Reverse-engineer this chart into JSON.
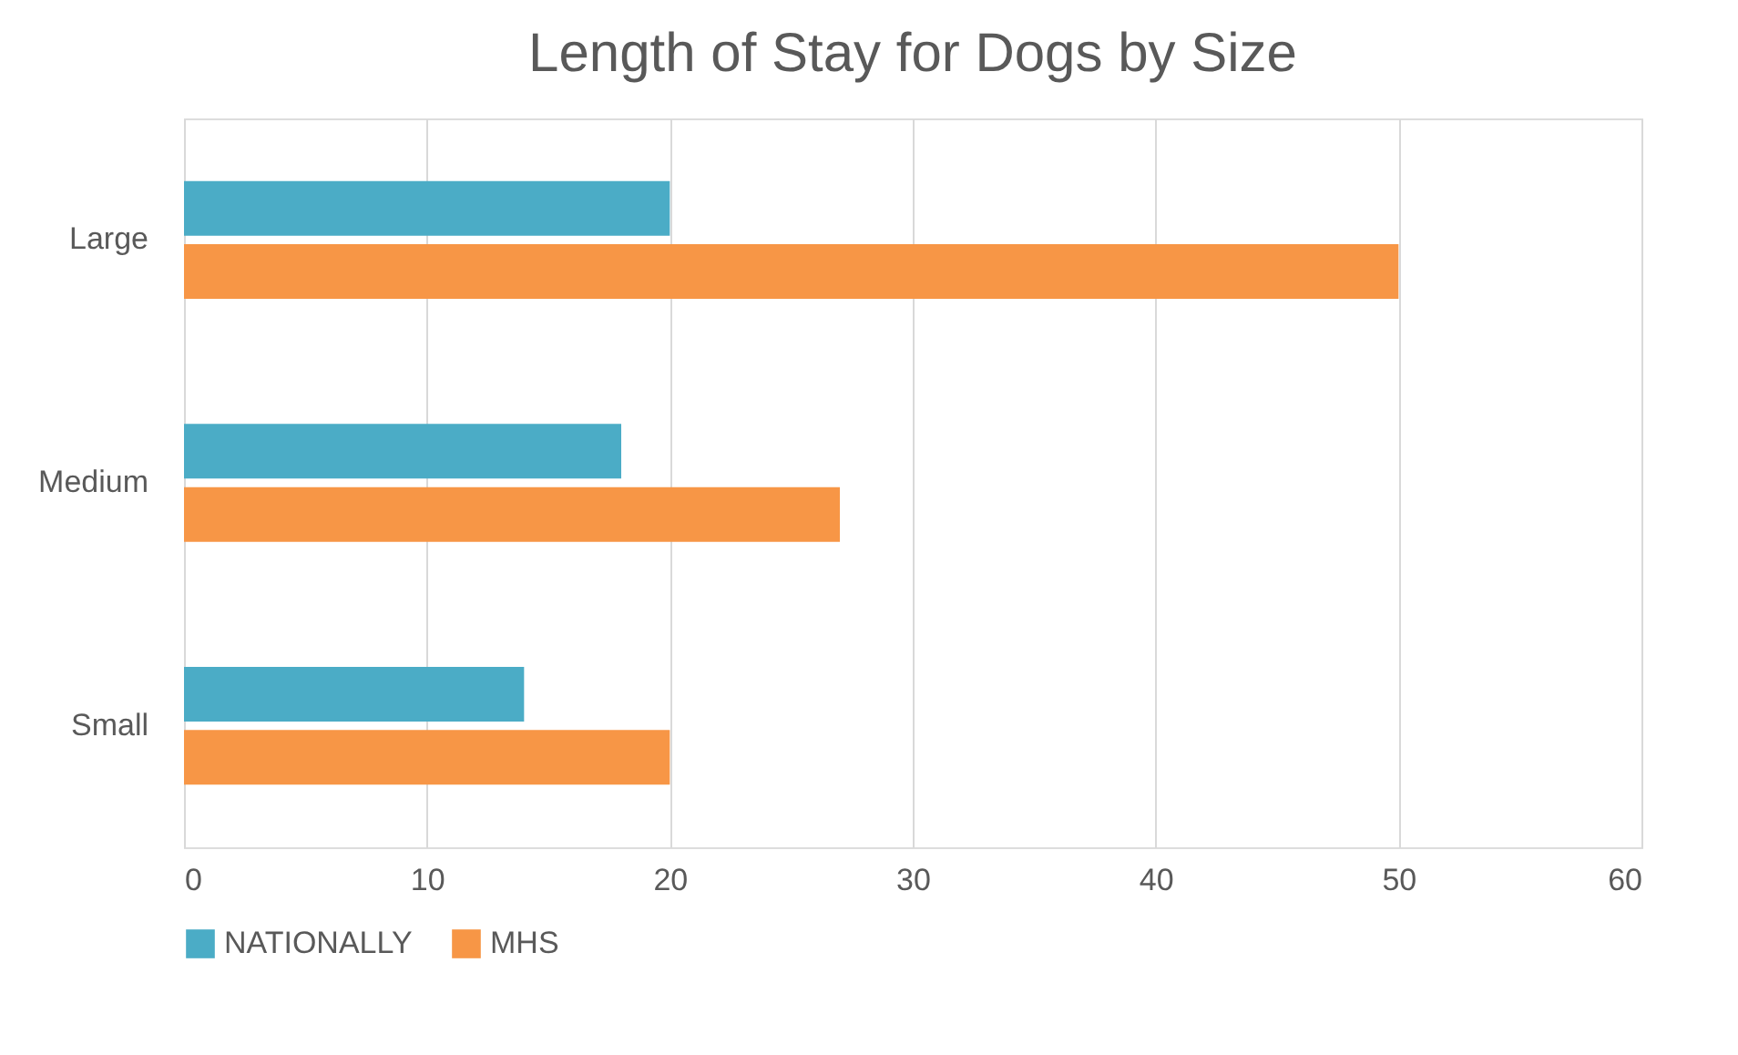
{
  "chart_data": {
    "type": "bar",
    "orientation": "horizontal",
    "title": "Length of Stay for Dogs by Size",
    "categories": [
      "Large",
      "Medium",
      "Small"
    ],
    "series": [
      {
        "name": "NATIONALLY",
        "color": "#4bacc6",
        "values": [
          20,
          18,
          14
        ]
      },
      {
        "name": "MHS",
        "color": "#f79646",
        "values": [
          50,
          27,
          20
        ]
      }
    ],
    "xlim": [
      0,
      60
    ],
    "xticks": [
      0,
      10,
      20,
      30,
      40,
      50,
      60
    ],
    "grid": "x",
    "legend": "bottom"
  }
}
